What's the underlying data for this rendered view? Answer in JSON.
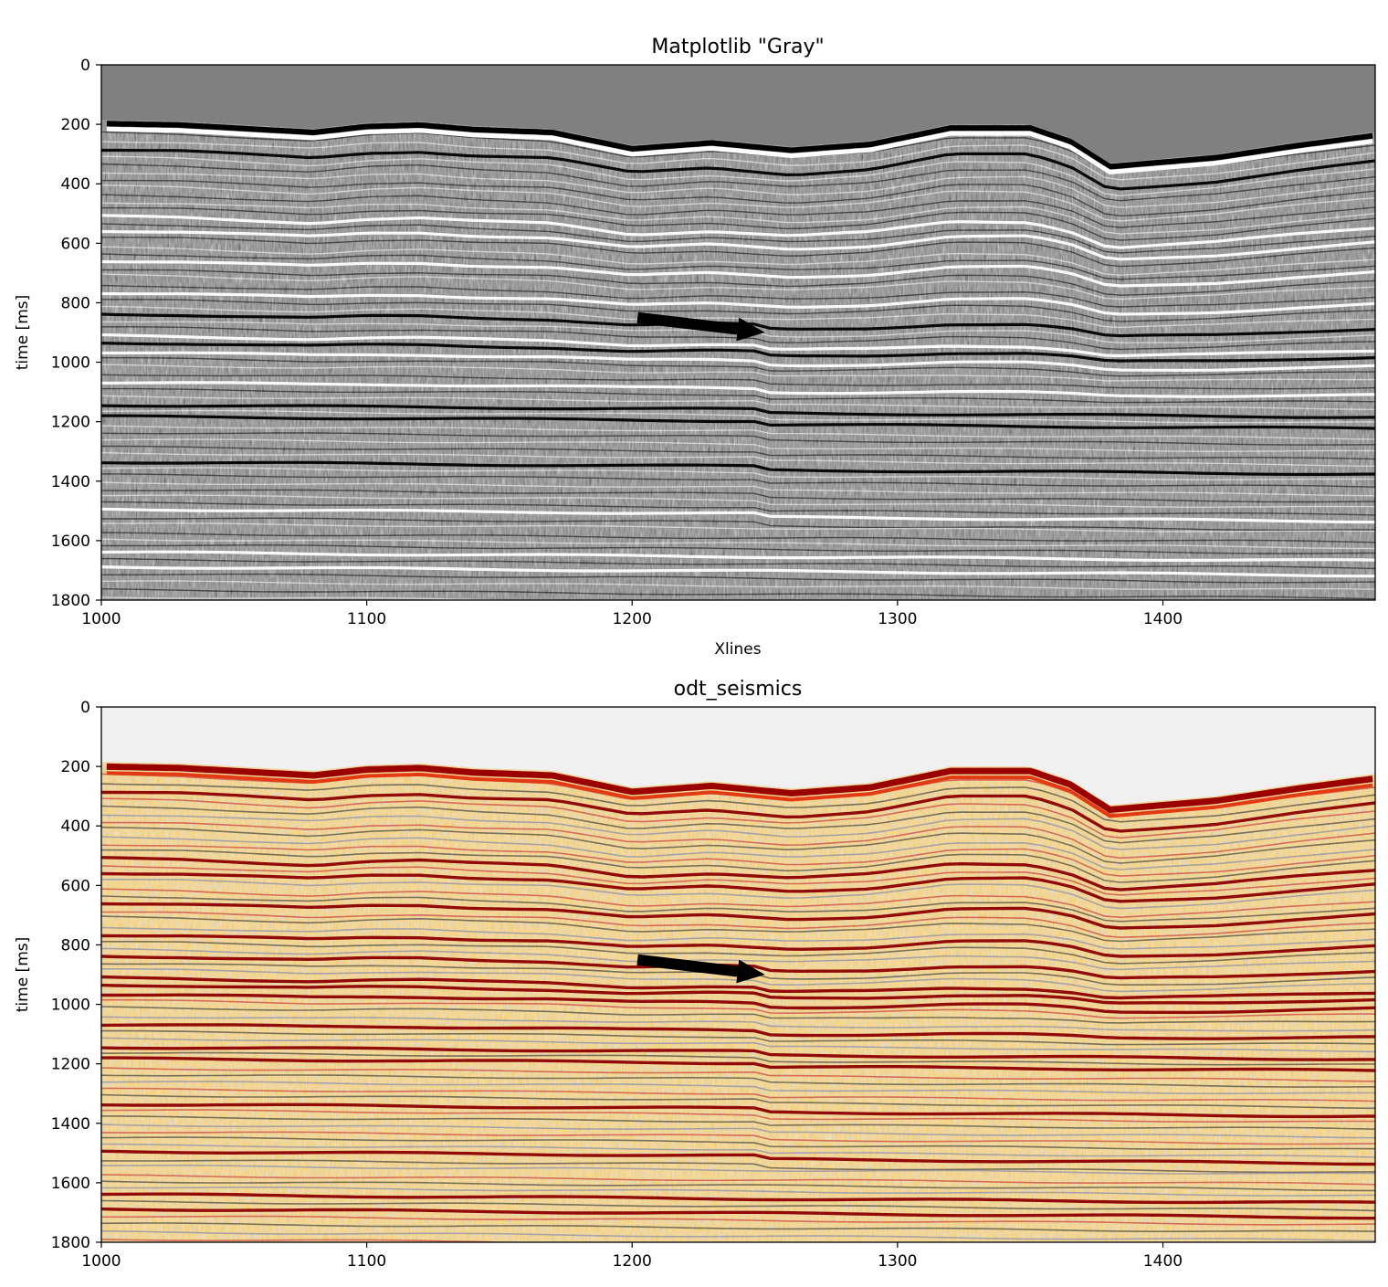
{
  "chart_data": [
    {
      "type": "heatmap",
      "title": "Matplotlib \"Gray\"",
      "colormap": "gray",
      "xlabel": "Xlines",
      "ylabel": "time [ms]",
      "xlim": [
        1000,
        1480
      ],
      "ylim": [
        1800,
        0
      ],
      "x_ticks": [
        1000,
        1100,
        1200,
        1300,
        1400
      ],
      "y_ticks": [
        0,
        200,
        400,
        600,
        800,
        1000,
        1200,
        1400,
        1600,
        1800
      ],
      "background_color": "#808080",
      "arrow": {
        "from": [
          1202,
          850
        ],
        "to": [
          1250,
          900
        ]
      },
      "seafloor": {
        "x": [
          1000,
          1030,
          1060,
          1080,
          1100,
          1120,
          1140,
          1170,
          1200,
          1230,
          1260,
          1290,
          1320,
          1350,
          1365,
          1380,
          1420,
          1450,
          1480
        ],
        "time": [
          185,
          190,
          205,
          215,
          195,
          190,
          205,
          215,
          270,
          250,
          275,
          255,
          200,
          200,
          245,
          330,
          300,
          260,
          225
        ]
      }
    },
    {
      "type": "heatmap",
      "title": "odt_seismics",
      "colormap": "odt_seismics",
      "xlabel": "",
      "ylabel": "time [ms]",
      "xlim": [
        1000,
        1480
      ],
      "ylim": [
        1800,
        0
      ],
      "x_ticks": [
        1000,
        1100,
        1200,
        1300,
        1400
      ],
      "y_ticks": [
        0,
        200,
        400,
        600,
        800,
        1000,
        1200,
        1400,
        1600,
        1800
      ],
      "background_color": "#f0f0f0",
      "arrow": {
        "from": [
          1202,
          850
        ],
        "to": [
          1250,
          900
        ]
      },
      "seafloor": {
        "x": [
          1000,
          1030,
          1060,
          1080,
          1100,
          1120,
          1140,
          1170,
          1200,
          1230,
          1260,
          1290,
          1320,
          1350,
          1365,
          1380,
          1420,
          1450,
          1480
        ],
        "time": [
          185,
          190,
          205,
          215,
          195,
          190,
          205,
          215,
          270,
          250,
          275,
          255,
          200,
          200,
          245,
          330,
          300,
          260,
          225
        ]
      }
    }
  ]
}
